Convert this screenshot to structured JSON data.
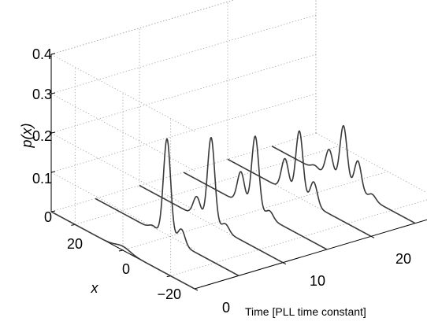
{
  "chart_data": {
    "type": "line",
    "view": "3d-waterfall",
    "title": "",
    "xlabel": "Time [PLL time constant]",
    "ylabel": "x",
    "zlabel": "p(x)",
    "time_lim": [
      0,
      30
    ],
    "x_lim": [
      -30,
      30
    ],
    "z_lim": [
      0,
      0.4
    ],
    "time_ticks": [
      0,
      10,
      20
    ],
    "x_ticks": [
      20,
      0,
      -20
    ],
    "z_ticks": [
      0,
      0.1,
      0.2,
      0.3,
      0.4
    ],
    "tick_labels": {
      "time": [
        "0",
        "10",
        "20"
      ],
      "x": [
        "20",
        "0",
        "−20"
      ],
      "z": [
        "0",
        "0.1",
        "0.2",
        "0.3",
        "0.4"
      ]
    },
    "grid": true,
    "series": [
      {
        "time": 0,
        "peaks": [
          {
            "x": 0,
            "p": 0.01,
            "w": 3
          }
        ]
      },
      {
        "time": 5,
        "peaks": [
          {
            "x": 0,
            "p": 0.25,
            "w": 1.5
          },
          {
            "x": -6,
            "p": 0.04,
            "w": 1.5
          },
          {
            "x": 6,
            "p": 0.01,
            "w": 1.5
          }
        ]
      },
      {
        "time": 10,
        "peaks": [
          {
            "x": 0,
            "p": 0.22,
            "w": 1.5
          },
          {
            "x": 6,
            "p": 0.05,
            "w": 1.5
          },
          {
            "x": -6,
            "p": 0.02,
            "w": 1.5
          }
        ]
      },
      {
        "time": 15,
        "peaks": [
          {
            "x": 0,
            "p": 0.19,
            "w": 1.5
          },
          {
            "x": 6,
            "p": 0.08,
            "w": 1.5
          },
          {
            "x": -6,
            "p": 0.02,
            "w": 1.5
          }
        ]
      },
      {
        "time": 20,
        "peaks": [
          {
            "x": 0,
            "p": 0.17,
            "w": 1.5
          },
          {
            "x": 6,
            "p": 0.08,
            "w": 1.5
          },
          {
            "x": -6,
            "p": 0.06,
            "w": 1.5
          }
        ]
      },
      {
        "time": 25,
        "peaks": [
          {
            "x": 0,
            "p": 0.15,
            "w": 1.5
          },
          {
            "x": 6,
            "p": 0.07,
            "w": 1.5
          },
          {
            "x": -6,
            "p": 0.08,
            "w": 1.5
          },
          {
            "x": -12,
            "p": 0.015,
            "w": 1.5
          },
          {
            "x": 12,
            "p": 0.01,
            "w": 1.5
          }
        ]
      }
    ]
  }
}
